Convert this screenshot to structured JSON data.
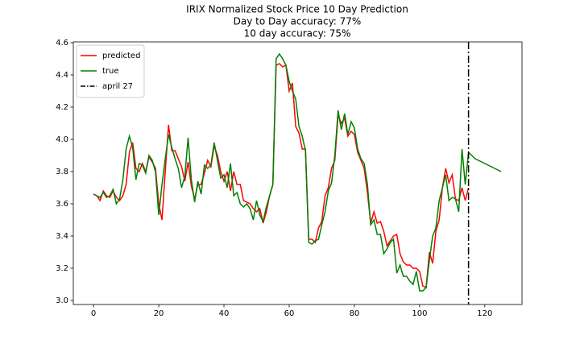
{
  "chart_data": {
    "type": "line",
    "title": "IRIX Normalized Stock Price 10 Day Prediction",
    "subtitle": [
      "Day to Day accuracy: 77%",
      "10 day accuracy: 75%"
    ],
    "x": [
      0,
      1,
      2,
      3,
      4,
      5,
      6,
      7,
      8,
      9,
      10,
      11,
      12,
      13,
      14,
      15,
      16,
      17,
      18,
      19,
      20,
      21,
      22,
      23,
      24,
      25,
      26,
      27,
      28,
      29,
      30,
      31,
      32,
      33,
      34,
      35,
      36,
      37,
      38,
      39,
      40,
      41,
      42,
      43,
      44,
      45,
      46,
      47,
      48,
      49,
      50,
      51,
      52,
      53,
      54,
      55,
      56,
      57,
      58,
      59,
      60,
      61,
      62,
      63,
      64,
      65,
      66,
      67,
      68,
      69,
      70,
      71,
      72,
      73,
      74,
      75,
      76,
      77,
      78,
      79,
      80,
      81,
      82,
      83,
      84,
      85,
      86,
      87,
      88,
      89,
      90,
      91,
      92,
      93,
      94,
      95,
      96,
      97,
      98,
      99,
      100,
      101,
      102,
      103,
      104,
      105,
      106,
      107,
      108,
      109,
      110,
      111,
      112,
      113,
      114,
      115,
      116,
      117,
      118,
      119,
      120,
      121,
      122,
      123,
      124,
      125
    ],
    "series": [
      {
        "name": "predicted",
        "color": "#ff0000",
        "values": [
          3.66,
          3.65,
          3.62,
          3.68,
          3.65,
          3.64,
          3.68,
          3.64,
          3.62,
          3.65,
          3.72,
          3.92,
          3.98,
          3.82,
          3.8,
          3.85,
          3.8,
          3.89,
          3.86,
          3.82,
          3.6,
          3.5,
          3.8,
          4.09,
          3.93,
          3.93,
          3.88,
          3.83,
          3.74,
          3.86,
          3.71,
          3.63,
          3.72,
          3.72,
          3.79,
          3.87,
          3.83,
          3.96,
          3.9,
          3.8,
          3.74,
          3.8,
          3.68,
          3.8,
          3.72,
          3.72,
          3.62,
          3.61,
          3.6,
          3.57,
          3.55,
          3.57,
          3.48,
          3.55,
          3.65,
          3.72,
          4.46,
          4.47,
          4.45,
          4.46,
          4.3,
          4.35,
          4.08,
          4.04,
          3.94,
          3.94,
          3.38,
          3.38,
          3.36,
          3.45,
          3.49,
          3.65,
          3.7,
          3.82,
          3.87,
          4.15,
          4.1,
          4.13,
          4.02,
          4.05,
          4.03,
          3.92,
          3.87,
          3.82,
          3.67,
          3.48,
          3.55,
          3.48,
          3.49,
          3.43,
          3.34,
          3.37,
          3.4,
          3.41,
          3.29,
          3.24,
          3.22,
          3.22,
          3.2,
          3.2,
          3.18,
          3.09,
          3.08,
          3.3,
          3.23,
          3.43,
          3.5,
          3.7,
          3.82,
          3.73,
          3.78,
          3.63,
          3.62,
          3.7,
          3.62,
          3.7,
          null,
          null,
          null,
          null,
          null,
          null,
          null,
          null,
          null,
          null
        ]
      },
      {
        "name": "true",
        "color": "#008000",
        "values": [
          3.66,
          3.65,
          3.64,
          3.67,
          3.64,
          3.65,
          3.69,
          3.6,
          3.63,
          3.75,
          3.94,
          4.02,
          3.95,
          3.75,
          3.85,
          3.84,
          3.79,
          3.9,
          3.87,
          3.8,
          3.53,
          3.72,
          3.88,
          4.03,
          3.95,
          3.88,
          3.82,
          3.7,
          3.77,
          4.01,
          3.75,
          3.61,
          3.74,
          3.66,
          3.84,
          3.82,
          3.84,
          3.98,
          3.87,
          3.76,
          3.78,
          3.7,
          3.85,
          3.65,
          3.67,
          3.6,
          3.58,
          3.6,
          3.57,
          3.5,
          3.62,
          3.53,
          3.49,
          3.58,
          3.65,
          3.72,
          4.5,
          4.53,
          4.5,
          4.46,
          4.36,
          4.3,
          4.25,
          4.08,
          4.02,
          3.93,
          3.36,
          3.35,
          3.37,
          3.38,
          3.47,
          3.55,
          3.68,
          3.73,
          3.9,
          4.18,
          4.06,
          4.16,
          4.03,
          4.11,
          4.07,
          3.94,
          3.88,
          3.85,
          3.72,
          3.47,
          3.5,
          3.41,
          3.41,
          3.29,
          3.32,
          3.36,
          3.38,
          3.17,
          3.22,
          3.15,
          3.15,
          3.12,
          3.1,
          3.18,
          3.06,
          3.06,
          3.08,
          3.25,
          3.4,
          3.45,
          3.62,
          3.7,
          3.78,
          3.62,
          3.64,
          3.63,
          3.55,
          3.94,
          3.72,
          3.92,
          3.9,
          3.88,
          3.87,
          3.86,
          3.85,
          3.84,
          3.83,
          3.82,
          3.81,
          3.8
        ]
      }
    ],
    "vline": {
      "x": 115,
      "label": "april 27",
      "color": "#000000"
    },
    "xlim": [
      -6.2,
      131.4
    ],
    "ylim": [
      2.975,
      4.605
    ],
    "xticks": [
      0,
      20,
      40,
      60,
      80,
      100,
      120
    ],
    "yticks": [
      {
        "value": 3,
        "label": "3.0"
      },
      3.2,
      3.4,
      3.6,
      3.8,
      {
        "value": 4,
        "label": "4.0"
      },
      4.2,
      4.4,
      4.6
    ],
    "legend": "upper left"
  }
}
